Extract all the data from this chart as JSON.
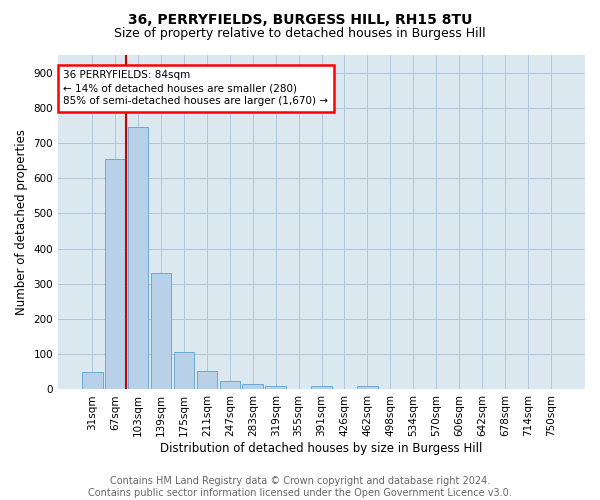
{
  "title1": "36, PERRYFIELDS, BURGESS HILL, RH15 8TU",
  "title2": "Size of property relative to detached houses in Burgess Hill",
  "xlabel": "Distribution of detached houses by size in Burgess Hill",
  "ylabel": "Number of detached properties",
  "categories": [
    "31sqm",
    "67sqm",
    "103sqm",
    "139sqm",
    "175sqm",
    "211sqm",
    "247sqm",
    "283sqm",
    "319sqm",
    "355sqm",
    "391sqm",
    "426sqm",
    "462sqm",
    "498sqm",
    "534sqm",
    "570sqm",
    "606sqm",
    "642sqm",
    "678sqm",
    "714sqm",
    "750sqm"
  ],
  "values": [
    50,
    655,
    745,
    330,
    107,
    52,
    25,
    15,
    10,
    0,
    10,
    0,
    10,
    0,
    0,
    0,
    0,
    0,
    0,
    0,
    0
  ],
  "bar_color": "#b8d0e8",
  "bar_edge_color": "#6aaad4",
  "ylim": [
    0,
    950
  ],
  "yticks": [
    0,
    100,
    200,
    300,
    400,
    500,
    600,
    700,
    800,
    900
  ],
  "annotation_title": "36 PERRYFIELDS: 84sqm",
  "annotation_line1": "← 14% of detached houses are smaller (280)",
  "annotation_line2": "85% of semi-detached houses are larger (1,670) →",
  "footer1": "Contains HM Land Registry data © Crown copyright and database right 2024.",
  "footer2": "Contains public sector information licensed under the Open Government Licence v3.0.",
  "bg_color": "#ffffff",
  "plot_bg_color": "#dce8f0",
  "grid_color": "#b0c8dc",
  "title1_fontsize": 10,
  "title2_fontsize": 9,
  "xlabel_fontsize": 8.5,
  "ylabel_fontsize": 8.5,
  "tick_fontsize": 7.5,
  "annot_fontsize": 7.5,
  "footer_fontsize": 7
}
